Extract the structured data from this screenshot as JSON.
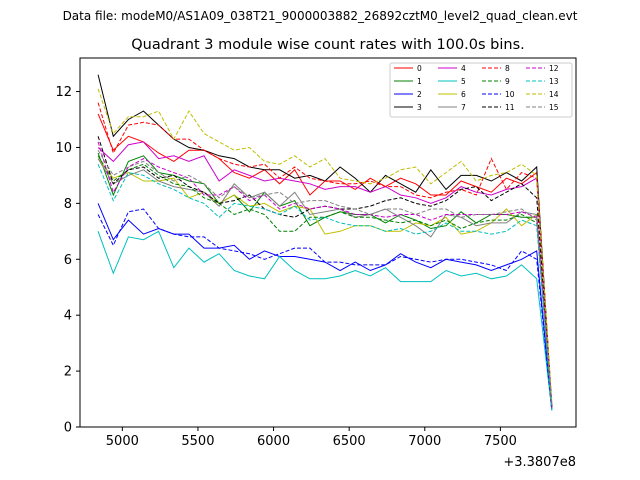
{
  "chart_data": {
    "type": "line",
    "suptitle": "Data file: modeM0/AS1A09_038T21_9000003882_26892cztM0_level2_quad_clean.evt",
    "title": "Quadrant 3 module wise count rates with 100.0s bins.",
    "xlabel": "",
    "ylabel": "",
    "offset_label": "+3.3807e8",
    "xlim": [
      4720,
      8000
    ],
    "ylim": [
      0,
      13.2
    ],
    "xticks": [
      5000,
      5500,
      6000,
      6500,
      7000,
      7500
    ],
    "yticks": [
      0,
      2,
      4,
      6,
      8,
      10,
      12
    ],
    "grid": false,
    "legend_position": "top-right",
    "legend_columns": 4,
    "x": [
      4840,
      4940,
      5040,
      5140,
      5240,
      5340,
      5440,
      5540,
      5640,
      5740,
      5840,
      5940,
      6040,
      6140,
      6240,
      6340,
      6440,
      6540,
      6640,
      6740,
      6840,
      6940,
      7040,
      7140,
      7240,
      7340,
      7440,
      7540,
      7640,
      7740,
      7840
    ],
    "series": [
      {
        "name": "0",
        "color": "#ff0000",
        "dash": "solid",
        "values": [
          11.2,
          9.9,
          10.4,
          10.2,
          9.8,
          9.5,
          9.9,
          9.9,
          9.6,
          9.1,
          8.9,
          9.2,
          8.7,
          9.2,
          8.3,
          8.8,
          8.8,
          8.5,
          8.9,
          8.6,
          8.9,
          8.7,
          8.3,
          8.3,
          8.8,
          8.6,
          8.4,
          8.9,
          8.7,
          9.1,
          0.8
        ]
      },
      {
        "name": "1",
        "color": "#008000",
        "dash": "solid",
        "values": [
          9.8,
          8.3,
          9.5,
          9.7,
          9.1,
          9.0,
          8.8,
          8.7,
          8.0,
          8.3,
          7.7,
          8.4,
          7.9,
          8.1,
          7.2,
          7.5,
          7.7,
          7.6,
          7.6,
          7.3,
          7.6,
          7.4,
          7.1,
          7.2,
          7.7,
          7.3,
          7.6,
          7.6,
          7.5,
          7.5,
          0.7
        ]
      },
      {
        "name": "2",
        "color": "#0000ff",
        "dash": "solid",
        "values": [
          8.0,
          6.7,
          7.4,
          6.9,
          7.1,
          6.9,
          6.9,
          6.4,
          6.4,
          6.5,
          6.0,
          6.3,
          6.1,
          6.1,
          6.0,
          5.9,
          5.6,
          5.9,
          5.6,
          5.8,
          6.2,
          5.9,
          5.7,
          6.0,
          5.9,
          5.8,
          5.6,
          5.8,
          6.0,
          6.3,
          0.6
        ]
      },
      {
        "name": "3",
        "color": "#000000",
        "dash": "solid",
        "values": [
          12.6,
          10.4,
          11.0,
          11.3,
          10.8,
          10.3,
          10.0,
          9.9,
          9.7,
          9.6,
          9.3,
          9.2,
          9.2,
          8.9,
          9.0,
          8.8,
          9.3,
          8.9,
          8.4,
          9.0,
          8.7,
          8.4,
          9.2,
          8.5,
          9.0,
          9.0,
          8.8,
          9.1,
          8.8,
          9.3,
          0.7
        ]
      },
      {
        "name": "4",
        "color": "#cc00cc",
        "dash": "solid",
        "values": [
          10.0,
          9.5,
          10.1,
          10.2,
          9.6,
          9.7,
          9.5,
          9.7,
          8.8,
          9.2,
          9.0,
          8.8,
          8.9,
          8.8,
          8.7,
          8.5,
          8.6,
          8.6,
          8.4,
          8.6,
          8.3,
          8.2,
          8.0,
          8.2,
          8.6,
          8.4,
          8.3,
          8.5,
          8.6,
          8.9,
          0.7
        ]
      },
      {
        "name": "5",
        "color": "#00bfbf",
        "dash": "solid",
        "values": [
          7.0,
          5.5,
          6.8,
          6.7,
          7.0,
          5.7,
          6.4,
          5.9,
          6.2,
          5.6,
          5.4,
          5.3,
          6.1,
          5.6,
          5.3,
          5.3,
          5.4,
          5.6,
          5.4,
          5.7,
          5.2,
          5.2,
          5.2,
          5.6,
          5.4,
          5.5,
          5.3,
          5.4,
          5.8,
          5.3,
          0.6
        ]
      },
      {
        "name": "6",
        "color": "#bfbf00",
        "dash": "solid",
        "values": [
          9.6,
          8.9,
          9.1,
          8.8,
          8.8,
          8.9,
          8.2,
          8.4,
          8.0,
          8.3,
          7.9,
          8.0,
          7.7,
          7.9,
          7.8,
          6.9,
          7.0,
          7.2,
          7.2,
          7.0,
          7.0,
          7.3,
          7.2,
          7.5,
          6.9,
          7.0,
          7.3,
          7.8,
          7.2,
          7.6,
          0.8
        ]
      },
      {
        "name": "7",
        "color": "#808080",
        "dash": "solid",
        "values": [
          9.6,
          8.7,
          9.0,
          9.2,
          8.8,
          8.6,
          8.5,
          8.4,
          7.9,
          8.7,
          8.2,
          8.4,
          7.9,
          8.4,
          7.6,
          7.7,
          7.8,
          7.5,
          7.6,
          7.8,
          7.5,
          7.2,
          6.8,
          7.6,
          7.5,
          7.2,
          7.3,
          7.3,
          7.7,
          7.6,
          0.7
        ]
      },
      {
        "name": "8",
        "color": "#ff0000",
        "dash": "dashed",
        "values": [
          11.6,
          9.8,
          10.8,
          10.9,
          10.8,
          10.3,
          10.3,
          9.9,
          9.6,
          9.4,
          9.3,
          9.4,
          8.9,
          9.3,
          8.9,
          8.8,
          8.7,
          8.7,
          8.8,
          8.6,
          8.6,
          8.3,
          8.2,
          8.4,
          8.5,
          8.3,
          9.6,
          8.5,
          9.1,
          8.9,
          0.8
        ]
      },
      {
        "name": "9",
        "color": "#008000",
        "dash": "dashed",
        "values": [
          9.7,
          8.8,
          9.2,
          9.4,
          9.0,
          8.7,
          8.6,
          8.2,
          8.0,
          7.6,
          7.8,
          7.6,
          7.0,
          7.0,
          7.5,
          7.5,
          7.7,
          7.5,
          7.5,
          7.4,
          7.3,
          7.4,
          7.2,
          7.4,
          7.1,
          7.3,
          7.4,
          7.4,
          7.6,
          7.3,
          0.7
        ]
      },
      {
        "name": "10",
        "color": "#0000ff",
        "dash": "dashed",
        "values": [
          7.6,
          6.5,
          7.7,
          7.8,
          7.1,
          6.9,
          6.8,
          6.8,
          6.4,
          6.3,
          6.2,
          6.0,
          6.2,
          6.4,
          6.4,
          5.9,
          5.9,
          5.8,
          5.8,
          5.8,
          6.1,
          6.0,
          5.9,
          6.0,
          6.0,
          5.9,
          5.8,
          5.6,
          6.3,
          6.0,
          0.6
        ]
      },
      {
        "name": "11",
        "color": "#000000",
        "dash": "dashed",
        "values": [
          10.4,
          8.7,
          9.2,
          9.3,
          8.9,
          9.0,
          8.6,
          8.4,
          8.0,
          8.1,
          8.3,
          7.8,
          7.6,
          7.5,
          7.8,
          7.9,
          7.8,
          7.8,
          7.9,
          8.1,
          8.2,
          8.0,
          7.9,
          8.1,
          8.5,
          8.6,
          8.1,
          8.4,
          8.7,
          8.2,
          0.7
        ]
      },
      {
        "name": "12",
        "color": "#cc00cc",
        "dash": "dashed",
        "values": [
          10.2,
          8.4,
          9.3,
          9.6,
          9.3,
          9.1,
          8.9,
          8.3,
          8.3,
          8.6,
          8.1,
          8.3,
          7.8,
          8.0,
          7.8,
          7.9,
          7.8,
          7.6,
          7.6,
          7.5,
          7.6,
          7.6,
          7.4,
          7.6,
          7.6,
          7.6,
          7.6,
          7.6,
          7.7,
          7.5,
          0.7
        ]
      },
      {
        "name": "13",
        "color": "#00bfbf",
        "dash": "dashed",
        "values": [
          9.4,
          8.1,
          9.1,
          9.0,
          8.7,
          8.5,
          8.2,
          8.0,
          7.5,
          8.0,
          7.9,
          7.8,
          7.6,
          7.9,
          7.4,
          7.5,
          7.3,
          7.2,
          7.2,
          7.0,
          7.1,
          6.9,
          7.0,
          7.3,
          7.0,
          7.0,
          6.9,
          7.0,
          7.4,
          7.2,
          0.6
        ]
      },
      {
        "name": "14",
        "color": "#bfbf00",
        "dash": "dashed",
        "values": [
          12.1,
          10.5,
          11.1,
          11.1,
          11.3,
          10.3,
          11.3,
          10.5,
          10.2,
          9.9,
          10.0,
          9.5,
          9.4,
          9.7,
          9.3,
          9.6,
          8.9,
          8.8,
          8.7,
          8.9,
          9.2,
          9.3,
          8.7,
          9.1,
          9.5,
          8.8,
          9.0,
          9.1,
          9.4,
          9.0,
          0.9
        ]
      },
      {
        "name": "15",
        "color": "#808080",
        "dash": "dashed",
        "values": [
          9.9,
          9.0,
          9.3,
          9.5,
          9.1,
          8.8,
          9.0,
          8.7,
          8.2,
          8.6,
          8.2,
          8.3,
          8.4,
          8.0,
          8.1,
          8.1,
          7.9,
          7.8,
          7.6,
          7.8,
          7.8,
          7.6,
          7.8,
          7.8,
          7.5,
          7.6,
          7.6,
          7.7,
          7.8,
          7.4,
          0.8
        ]
      }
    ]
  }
}
